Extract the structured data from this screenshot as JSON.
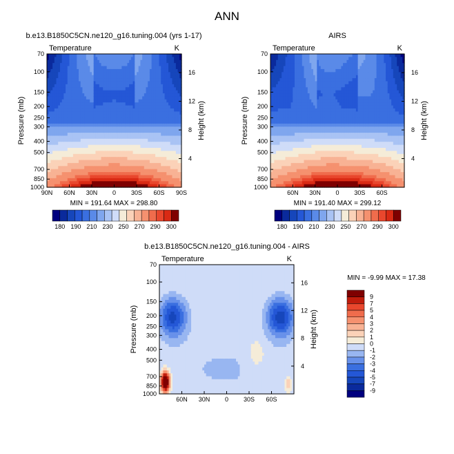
{
  "page_title": "ANN",
  "colors": {
    "temperature": [
      "#00007f",
      "#0a2a9c",
      "#1646bb",
      "#2457d6",
      "#3a6fe0",
      "#5a8ae8",
      "#7fa6ee",
      "#a9c3f4",
      "#cfdcf8",
      "#f5ecd8",
      "#fbd2b8",
      "#f8b294",
      "#f5916f",
      "#f06c4c",
      "#e9472d",
      "#d92a14",
      "#7f0000"
    ],
    "difference": [
      "#00007f",
      "#0a2a9c",
      "#1646bb",
      "#2457d6",
      "#3a6fe0",
      "#6891ea",
      "#98b6f1",
      "#cfdcf8",
      "#f5ecd8",
      "#fbd2b8",
      "#f8b294",
      "#f5916f",
      "#f06c4c",
      "#e9472d",
      "#c01c0c",
      "#7f0000"
    ]
  },
  "chart_data": [
    {
      "type": "heatmap",
      "panel": "model",
      "title": "b.e13.B1850C5CN.ne120_g16.tuning.004 (yrs 1-17)",
      "variable": "Temperature",
      "units": "K",
      "ylabel": "Pressure (mb)",
      "y2label": "Height (km)",
      "pressure_ticks": [
        "70",
        "100",
        "150",
        "200",
        "250",
        "300",
        "400",
        "500",
        "700",
        "850",
        "1000"
      ],
      "height_ticks": [
        "16",
        "12",
        "8",
        "4"
      ],
      "lat_ticks": [
        "90N",
        "60N",
        "30N",
        "0",
        "30S",
        "60S",
        "90S"
      ],
      "stats": "MIN = 191.64   MAX = 298.80",
      "colorbar_labels": [
        "180",
        "190",
        "210",
        "230",
        "250",
        "270",
        "290",
        "300"
      ]
    },
    {
      "type": "heatmap",
      "panel": "obs",
      "title": "AIRS",
      "variable": "Temperature",
      "units": "K",
      "ylabel": "Pressure (mb)",
      "y2label": "Height (km)",
      "pressure_ticks": [
        "70",
        "100",
        "150",
        "200",
        "250",
        "300",
        "400",
        "500",
        "700",
        "850",
        "1000"
      ],
      "height_ticks": [
        "16",
        "12",
        "8",
        "4"
      ],
      "lat_ticks": [
        "60N",
        "30N",
        "0",
        "30S",
        "60S"
      ],
      "stats": "MIN = 191.40   MAX = 299.12",
      "colorbar_labels": [
        "180",
        "190",
        "210",
        "230",
        "250",
        "270",
        "290",
        "300"
      ]
    },
    {
      "type": "heatmap",
      "panel": "difference",
      "title": "b.e13.B1850C5CN.ne120_g16.tuning.004 - AIRS",
      "variable": "Temperature",
      "units": "K",
      "ylabel": "Pressure (mb)",
      "y2label": "Height (km)",
      "pressure_ticks": [
        "70",
        "100",
        "150",
        "200",
        "250",
        "300",
        "400",
        "500",
        "700",
        "850",
        "1000"
      ],
      "height_ticks": [
        "16",
        "12",
        "8",
        "4"
      ],
      "lat_ticks": [
        "60N",
        "30N",
        "0",
        "30S",
        "60S"
      ],
      "stats": "MIN =   -9.99   MAX =   17.38",
      "colorbar_labels": [
        "9",
        "7",
        "5",
        "4",
        "3",
        "2",
        "1",
        "0",
        "-1",
        "-2",
        "-3",
        "-4",
        "-5",
        "-7",
        "-9"
      ]
    }
  ]
}
